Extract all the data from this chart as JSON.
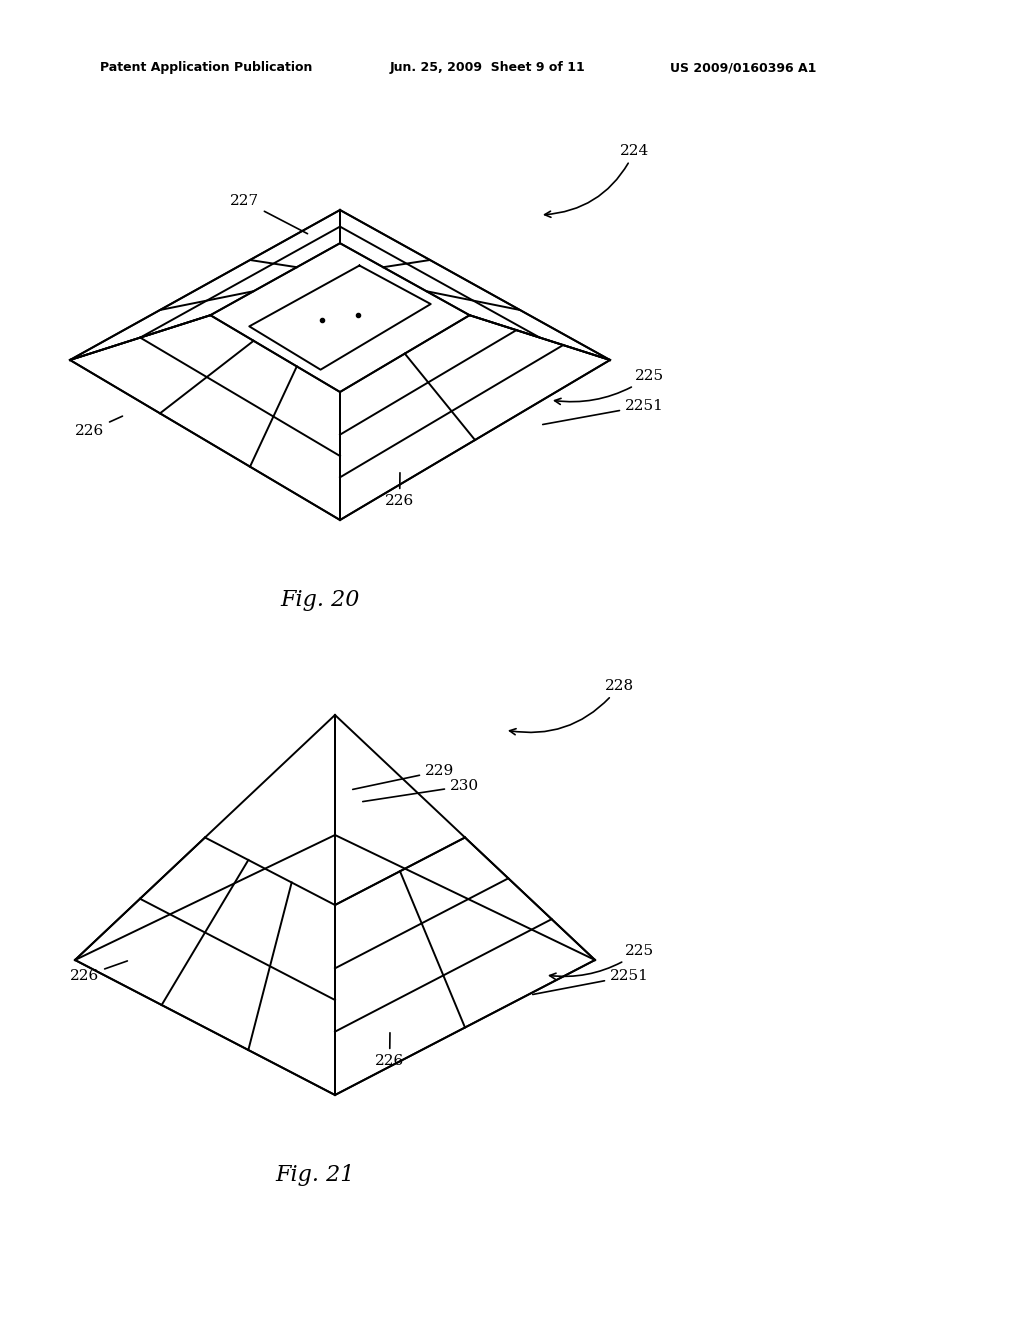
{
  "bg_color": "#ffffff",
  "line_color": "#000000",
  "header_left": "Patent Application Publication",
  "header_mid": "Jun. 25, 2009  Sheet 9 of 11",
  "header_right": "US 2009/0160396 A1",
  "fig20_label": "Fig. 20",
  "fig21_label": "Fig. 21"
}
